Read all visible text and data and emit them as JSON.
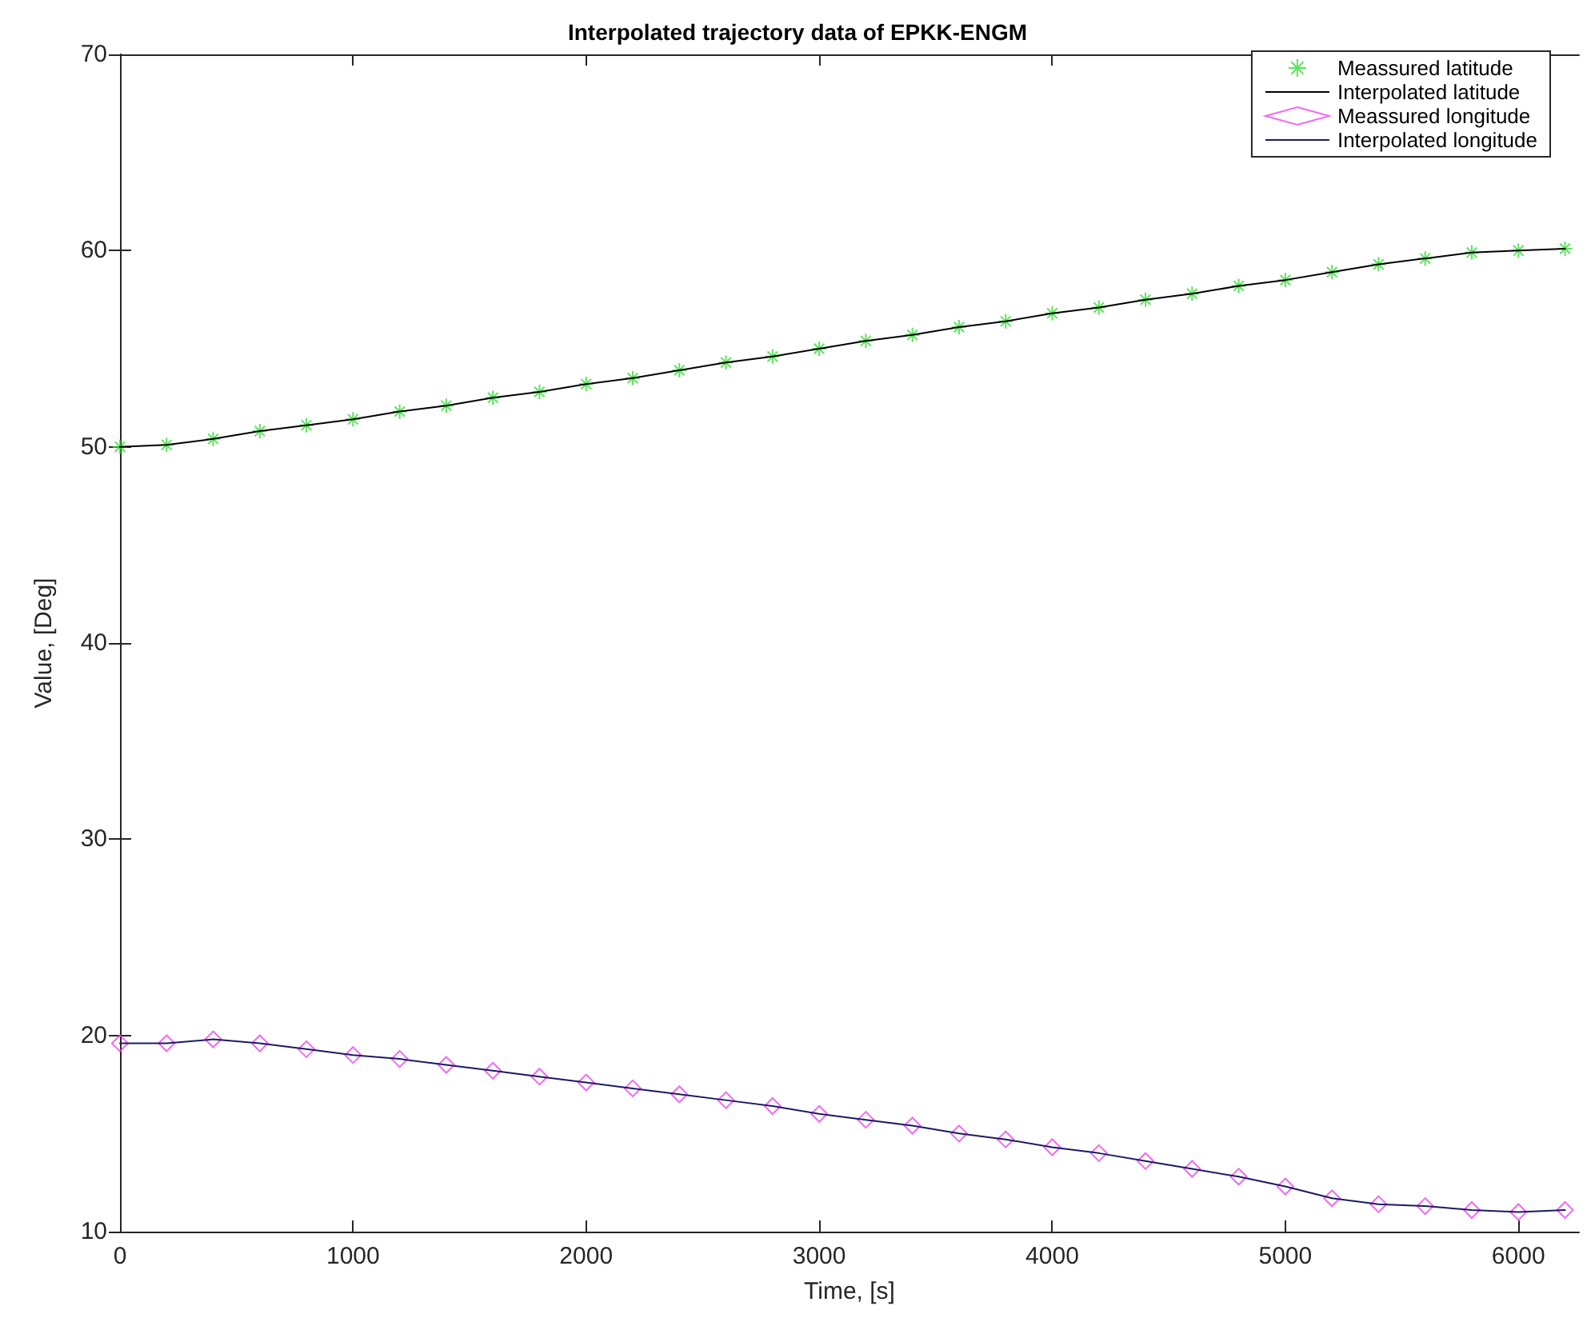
{
  "chart_data": {
    "type": "line",
    "title": "Interpolated trajectory data of EPKK-ENGM",
    "xlabel": "Time, [s]",
    "ylabel": "Value, [Deg]",
    "xlim": [
      0,
      6260
    ],
    "xticks": [
      0,
      1000,
      2000,
      3000,
      4000,
      5000,
      6000
    ],
    "ylim": [
      10,
      70
    ],
    "yticks": [
      10,
      20,
      30,
      40,
      50,
      60,
      70
    ],
    "grid": false,
    "legend": "top right",
    "series": [
      {
        "name": "Meassured latitude",
        "type": "scatter",
        "marker": "cross",
        "color": "#33dd33",
        "x": [
          0,
          200,
          400,
          600,
          800,
          1000,
          1200,
          1400,
          1600,
          1800,
          2000,
          2200,
          2400,
          2600,
          2800,
          3000,
          3200,
          3400,
          3600,
          3800,
          4000,
          4200,
          4400,
          4600,
          4800,
          5000,
          5200,
          5400,
          5600,
          5800,
          6000,
          6200
        ],
        "values": [
          50.0,
          50.1,
          50.4,
          50.8,
          51.1,
          51.4,
          51.8,
          52.1,
          52.5,
          52.8,
          53.2,
          53.5,
          53.9,
          54.3,
          54.6,
          55.0,
          55.4,
          55.7,
          56.1,
          56.4,
          56.8,
          57.1,
          57.5,
          57.8,
          58.2,
          58.5,
          58.9,
          59.3,
          59.6,
          59.9,
          60.0,
          60.1
        ]
      },
      {
        "name": "Interpolated latitude",
        "marker": "none",
        "color": "#000000",
        "x": [
          0,
          200,
          400,
          600,
          800,
          1000,
          1200,
          1400,
          1600,
          1800,
          2000,
          2200,
          2400,
          2600,
          2800,
          3000,
          3200,
          3400,
          3600,
          3800,
          4000,
          4200,
          4400,
          4600,
          4800,
          5000,
          5200,
          5400,
          5600,
          5800,
          6000,
          6200
        ],
        "values": [
          50.0,
          50.1,
          50.4,
          50.8,
          51.1,
          51.4,
          51.8,
          52.1,
          52.5,
          52.8,
          53.2,
          53.5,
          53.9,
          54.3,
          54.6,
          55.0,
          55.4,
          55.7,
          56.1,
          56.4,
          56.8,
          57.1,
          57.5,
          57.8,
          58.2,
          58.5,
          58.9,
          59.3,
          59.6,
          59.9,
          60.0,
          60.1
        ]
      },
      {
        "name": "Meassured longitude",
        "type": "scatter",
        "marker": "diamond",
        "color": "#ee44ee",
        "x": [
          0,
          200,
          400,
          600,
          800,
          1000,
          1200,
          1400,
          1600,
          1800,
          2000,
          2200,
          2400,
          2600,
          2800,
          3000,
          3200,
          3400,
          3600,
          3800,
          4000,
          4200,
          4400,
          4600,
          4800,
          5000,
          5200,
          5400,
          5600,
          5800,
          6000,
          6200
        ],
        "values": [
          19.6,
          19.6,
          19.8,
          19.6,
          19.3,
          19.0,
          18.8,
          18.5,
          18.2,
          17.9,
          17.6,
          17.3,
          17.0,
          16.7,
          16.4,
          16.0,
          15.7,
          15.4,
          15.0,
          14.7,
          14.3,
          14.0,
          13.6,
          13.2,
          12.8,
          12.3,
          11.7,
          11.4,
          11.3,
          11.1,
          11.0,
          11.1
        ]
      },
      {
        "name": "Interpolated longitude",
        "marker": "none",
        "color": "#1a1a66",
        "x": [
          0,
          200,
          400,
          600,
          800,
          1000,
          1200,
          1400,
          1600,
          1800,
          2000,
          2200,
          2400,
          2600,
          2800,
          3000,
          3200,
          3400,
          3600,
          3800,
          4000,
          4200,
          4400,
          4600,
          4800,
          5000,
          5200,
          5400,
          5600,
          5800,
          6000,
          6200
        ],
        "values": [
          19.6,
          19.6,
          19.8,
          19.6,
          19.3,
          19.0,
          18.8,
          18.5,
          18.2,
          17.9,
          17.6,
          17.3,
          17.0,
          16.7,
          16.4,
          16.0,
          15.7,
          15.4,
          15.0,
          14.7,
          14.3,
          14.0,
          13.6,
          13.2,
          12.8,
          12.3,
          11.7,
          11.4,
          11.3,
          11.1,
          11.0,
          11.1
        ]
      }
    ]
  }
}
